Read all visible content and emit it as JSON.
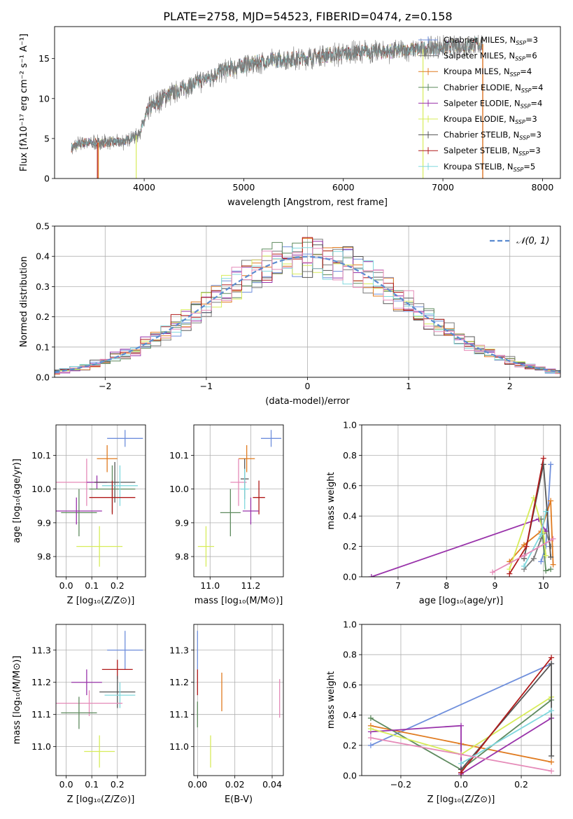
{
  "figure_title": "PLATE=2758, MJD=54523, FIBERID=0474, z=0.158",
  "colors": {
    "Chabrier MILES": "#6f8fdc",
    "Salpeter MILES": "#7a7a7a",
    "Kroupa MILES": "#e07b20",
    "Chabrier ELODIE": "#5e8a5e",
    "Salpeter ELODIE": "#9933aa",
    "Kroupa ELODIE": "#d7ec5a",
    "Chabrier STELIB": "#555555",
    "Salpeter STELIB": "#b01a1a",
    "Kroupa STELIB": "#80d8de",
    "pink": "#e58ab8"
  },
  "chart_data": [
    {
      "id": "spectrum",
      "type": "line",
      "xlabel": "wavelength [Angstrom, rest frame]",
      "ylabel": "Flux [fλ10⁻¹⁷ erg cm⁻² s⁻¹ A⁻¹]",
      "xlim": [
        3100,
        8180
      ],
      "ylim": [
        0,
        19
      ],
      "xticks": [
        "4000",
        "5000",
        "6000",
        "7000",
        "8000"
      ],
      "yticks": [
        "0",
        "5",
        "10",
        "15"
      ],
      "grid": false,
      "legend_position": "right",
      "legend": [
        {
          "name": "Chabrier MILES",
          "nssp": 3
        },
        {
          "name": "Salpeter MILES",
          "nssp": 6
        },
        {
          "name": "Kroupa MILES",
          "nssp": 4
        },
        {
          "name": "Chabrier ELODIE",
          "nssp": 4
        },
        {
          "name": "Salpeter ELODIE",
          "nssp": 4
        },
        {
          "name": "Kroupa ELODIE",
          "nssp": 3
        },
        {
          "name": "Chabrier STELIB",
          "nssp": 3
        },
        {
          "name": "Salpeter STELIB",
          "nssp": 3
        },
        {
          "name": "Kroupa STELIB",
          "nssp": 5
        }
      ],
      "continuum": [
        [
          3270,
          3.9
        ],
        [
          3400,
          4.5
        ],
        [
          3600,
          4.5
        ],
        [
          3800,
          4.6
        ],
        [
          3950,
          5.6
        ],
        [
          4050,
          8.8
        ],
        [
          4200,
          10.2
        ],
        [
          4400,
          11.3
        ],
        [
          4600,
          12.4
        ],
        [
          4800,
          13.5
        ],
        [
          5000,
          14.2
        ],
        [
          5200,
          14.6
        ],
        [
          5400,
          14.9
        ],
        [
          5600,
          15.0
        ],
        [
          5800,
          15.4
        ],
        [
          6000,
          15.6
        ],
        [
          6200,
          15.8
        ],
        [
          6400,
          15.9
        ],
        [
          6600,
          16.0
        ],
        [
          6800,
          16.2
        ],
        [
          7000,
          16.4
        ],
        [
          7200,
          16.6
        ],
        [
          7400,
          16.8
        ]
      ]
    },
    {
      "id": "residuals",
      "type": "histogram",
      "xlabel": "(data-model)/error",
      "ylabel": "Normed distribution",
      "xlim": [
        -2.5,
        2.5
      ],
      "ylim": [
        0,
        0.5
      ],
      "xticks": [
        "−2",
        "−1",
        "0",
        "1",
        "2"
      ],
      "yticks": [
        "0.0",
        "0.1",
        "0.2",
        "0.3",
        "0.4",
        "0.5"
      ],
      "grid": true,
      "legend_position": "top-right",
      "legend_label": "𝒩(0, 1)"
    },
    {
      "id": "age_vs_Z",
      "type": "scatter",
      "xlabel": "Z [log₁₀(Z/Z⊙)]",
      "ylabel": "age  [log₁₀(age/yr)]",
      "xlim": [
        -0.04,
        0.31
      ],
      "ylim": [
        9.74,
        10.19
      ],
      "xticks": [
        "0.0",
        "0.1",
        "0.2"
      ],
      "yticks": [
        "9.8",
        "9.9",
        "10.0",
        "10.1"
      ],
      "grid": true,
      "points": [
        {
          "color": "#6f8fdc",
          "x": 0.23,
          "xerr": 0.07,
          "y": 10.15,
          "yerr": 0.025
        },
        {
          "color": "#e07b20",
          "x": 0.16,
          "xerr": 0.04,
          "y": 10.09,
          "yerr": 0.04
        },
        {
          "color": "#e58ab8",
          "x": 0.08,
          "xerr": 0.12,
          "y": 10.02,
          "yerr": 0.07
        },
        {
          "color": "#9933aa",
          "x": 0.12,
          "xerr": 0.04,
          "y": 10.02,
          "yerr": 0.02
        },
        {
          "color": "#555555",
          "x": 0.19,
          "xerr": 0.08,
          "y": 10.02,
          "yerr": 0.06
        },
        {
          "color": "#5e8a5e",
          "x": 0.18,
          "xerr": 0.09,
          "y": 10.0,
          "yerr": 0.07
        },
        {
          "color": "#80d8de",
          "x": 0.21,
          "xerr": 0.07,
          "y": 10.01,
          "yerr": 0.06
        },
        {
          "color": "#b01a1a",
          "x": 0.18,
          "xerr": 0.09,
          "y": 9.975,
          "yerr": 0.05
        },
        {
          "color": "#5e8a5e",
          "x": 0.05,
          "xerr": 0.07,
          "y": 9.93,
          "yerr": 0.07
        },
        {
          "color": "#9933aa",
          "x": 0.04,
          "xerr": 0.1,
          "y": 9.935,
          "yerr": 0.04
        },
        {
          "color": "#d7ec5a",
          "x": 0.13,
          "xerr": 0.09,
          "y": 9.83,
          "yerr": 0.06
        }
      ]
    },
    {
      "id": "age_vs_mass",
      "type": "scatter",
      "xlabel": "mass [log₁₀(M/M⊙)]",
      "xlim": [
        10.92,
        11.36
      ],
      "ylim": [
        9.74,
        10.19
      ],
      "xticks": [
        "11.0",
        "11.2"
      ],
      "yticks": [
        "9.8",
        "9.9",
        "10.0",
        "10.1"
      ],
      "grid": true,
      "points": [
        {
          "color": "#6f8fdc",
          "x": 11.3,
          "xerr": 0.05,
          "y": 10.15,
          "yerr": 0.025
        },
        {
          "color": "#e07b20",
          "x": 11.18,
          "xerr": 0.04,
          "y": 10.09,
          "yerr": 0.04
        },
        {
          "color": "#e58ab8",
          "x": 11.14,
          "xerr": 0.04,
          "y": 10.02,
          "yerr": 0.07
        },
        {
          "color": "#555555",
          "x": 11.17,
          "xerr": 0.02,
          "y": 10.03,
          "yerr": 0.06
        },
        {
          "color": "#80d8de",
          "x": 11.17,
          "xerr": 0.02,
          "y": 10.0,
          "yerr": 0.06
        },
        {
          "color": "#b01a1a",
          "x": 11.24,
          "xerr": 0.03,
          "y": 9.975,
          "yerr": 0.05
        },
        {
          "color": "#9933aa",
          "x": 11.2,
          "xerr": 0.04,
          "y": 9.935,
          "yerr": 0.04
        },
        {
          "color": "#5e8a5e",
          "x": 11.1,
          "xerr": 0.05,
          "y": 9.93,
          "yerr": 0.07
        },
        {
          "color": "#d7ec5a",
          "x": 10.98,
          "xerr": 0.04,
          "y": 9.83,
          "yerr": 0.06
        }
      ]
    },
    {
      "id": "massweight_vs_age",
      "type": "line",
      "xlabel": "age  [log₁₀(age/yr)]",
      "ylabel": "mass weight",
      "xlim": [
        6.25,
        10.35
      ],
      "ylim": [
        0,
        1
      ],
      "xticks": [
        "7",
        "8",
        "9",
        "10"
      ],
      "yticks": [
        "0.0",
        "0.2",
        "0.4",
        "0.6",
        "0.8",
        "1.0"
      ],
      "grid": true,
      "series": [
        {
          "color": "#6f8fdc",
          "x": [
            9.95,
            10.05,
            10.15
          ],
          "y": [
            0.1,
            0.2,
            0.74
          ]
        },
        {
          "color": "#7a7a7a",
          "x": [
            9.6,
            9.8,
            9.95,
            10.05,
            10.15
          ],
          "y": [
            0.05,
            0.12,
            0.25,
            0.3,
            0.2
          ]
        },
        {
          "color": "#e07b20",
          "x": [
            9.3,
            9.6,
            9.95,
            10.15,
            10.2
          ],
          "y": [
            0.1,
            0.21,
            0.3,
            0.5,
            0.08
          ]
        },
        {
          "color": "#5e8a5e",
          "x": [
            9.95,
            10.05,
            10.15
          ],
          "y": [
            0.38,
            0.04,
            0.05
          ]
        },
        {
          "color": "#9933aa",
          "x": [
            6.45,
            9.9,
            10.05
          ],
          "y": [
            0.0,
            0.38,
            0.3
          ]
        },
        {
          "color": "#d7ec5a",
          "x": [
            9.3,
            9.8,
            10.0,
            10.05
          ],
          "y": [
            0.05,
            0.52,
            0.29,
            0.14
          ]
        },
        {
          "color": "#555555",
          "x": [
            9.6,
            10.0,
            10.15
          ],
          "y": [
            0.12,
            0.74,
            0.13
          ]
        },
        {
          "color": "#b01a1a",
          "x": [
            9.3,
            9.65,
            10.0
          ],
          "y": [
            0.02,
            0.2,
            0.78
          ]
        },
        {
          "color": "#80d8de",
          "x": [
            9.6,
            9.95,
            10.05
          ],
          "y": [
            0.07,
            0.28,
            0.43
          ]
        },
        {
          "color": "#e58ab8",
          "x": [
            8.95,
            9.6,
            10.2
          ],
          "y": [
            0.03,
            0.14,
            0.25
          ]
        }
      ]
    },
    {
      "id": "mass_vs_Z",
      "type": "scatter",
      "xlabel": "Z [log₁₀(Z/Z⊙)]",
      "ylabel": "mass [log₁₀(M/M⊙)]",
      "xlim": [
        -0.04,
        0.31
      ],
      "ylim": [
        10.91,
        11.38
      ],
      "xticks": [
        "0.0",
        "0.1",
        "0.2"
      ],
      "yticks": [
        "11.0",
        "11.1",
        "11.2",
        "11.3"
      ],
      "grid": true,
      "points": [
        {
          "color": "#6f8fdc",
          "x": 0.23,
          "xerr": 0.07,
          "y": 11.3,
          "yerr": 0.06
        },
        {
          "color": "#b01a1a",
          "x": 0.2,
          "xerr": 0.06,
          "y": 11.24,
          "yerr": 0.03
        },
        {
          "color": "#9933aa",
          "x": 0.08,
          "xerr": 0.06,
          "y": 11.2,
          "yerr": 0.04
        },
        {
          "color": "#555555",
          "x": 0.2,
          "xerr": 0.07,
          "y": 11.17,
          "yerr": 0.05
        },
        {
          "color": "#80d8de",
          "x": 0.21,
          "xerr": 0.06,
          "y": 11.16,
          "yerr": 0.04
        },
        {
          "color": "#e58ab8",
          "x": 0.09,
          "xerr": 0.13,
          "y": 11.135,
          "yerr": 0.04
        },
        {
          "color": "#5e8a5e",
          "x": 0.05,
          "xerr": 0.07,
          "y": 11.105,
          "yerr": 0.05
        },
        {
          "color": "#d7ec5a",
          "x": 0.13,
          "xerr": 0.06,
          "y": 10.985,
          "yerr": 0.05
        }
      ]
    },
    {
      "id": "mass_vs_EBV",
      "type": "scatter",
      "xlabel": "E(B-V)",
      "xlim": [
        -0.002,
        0.046
      ],
      "ylim": [
        10.91,
        11.38
      ],
      "xticks": [
        "0.00",
        "0.02",
        "0.04"
      ],
      "yticks": [
        "11.0",
        "11.1",
        "11.2",
        "11.3"
      ],
      "grid": true,
      "points": [
        {
          "color": "#6f8fdc",
          "x": 0.0,
          "xerr": 0.0,
          "y": 11.3,
          "yerr": 0.06
        },
        {
          "color": "#b01a1a",
          "x": 0.0,
          "xerr": 0.0,
          "y": 11.2,
          "yerr": 0.04
        },
        {
          "color": "#5e8a5e",
          "x": 0.0,
          "xerr": 0.0,
          "y": 11.1,
          "yerr": 0.04
        },
        {
          "color": "#e07b20",
          "x": 0.013,
          "xerr": 0.0,
          "y": 11.17,
          "yerr": 0.06
        },
        {
          "color": "#d7ec5a",
          "x": 0.007,
          "xerr": 0.0,
          "y": 10.985,
          "yerr": 0.05
        },
        {
          "color": "#e58ab8",
          "x": 0.044,
          "xerr": 0.0,
          "y": 11.15,
          "yerr": 0.06
        }
      ]
    },
    {
      "id": "massweight_vs_Z",
      "type": "line",
      "xlabel": "Z [log₁₀(Z/Z⊙)]",
      "ylabel": "mass weight",
      "xlim": [
        -0.33,
        0.33
      ],
      "ylim": [
        0,
        1
      ],
      "xticks": [
        "−0.2",
        "0.0",
        "0.2"
      ],
      "yticks": [
        "0.0",
        "0.2",
        "0.4",
        "0.6",
        "0.8",
        "1.0"
      ],
      "grid": true,
      "series": [
        {
          "color": "#6f8fdc",
          "x": [
            -0.3,
            0.3
          ],
          "y": [
            0.2,
            0.74
          ]
        },
        {
          "color": "#e07b20",
          "x": [
            -0.3,
            0.0,
            0.3
          ],
          "y": [
            0.33,
            0.21,
            0.09
          ]
        },
        {
          "color": "#5e8a5e",
          "x": [
            -0.3,
            0.0,
            0.3
          ],
          "y": [
            0.38,
            0.04,
            0.5
          ]
        },
        {
          "color": "#9933aa",
          "x": [
            -0.3,
            0.0,
            0.0,
            0.3
          ],
          "y": [
            0.29,
            0.33,
            0.01,
            0.38
          ]
        },
        {
          "color": "#d7ec5a",
          "x": [
            -0.3,
            0.0,
            0.3
          ],
          "y": [
            0.31,
            0.14,
            0.52
          ]
        },
        {
          "color": "#555555",
          "x": [
            0.0,
            0.3,
            0.3
          ],
          "y": [
            0.04,
            0.74,
            0.13
          ]
        },
        {
          "color": "#b01a1a",
          "x": [
            0.0,
            0.3
          ],
          "y": [
            0.02,
            0.78
          ]
        },
        {
          "color": "#80d8de",
          "x": [
            0.0,
            0.3
          ],
          "y": [
            0.08,
            0.43
          ]
        },
        {
          "color": "#e58ab8",
          "x": [
            -0.3,
            0.0,
            0.3
          ],
          "y": [
            0.25,
            0.14,
            0.03
          ]
        }
      ]
    }
  ]
}
